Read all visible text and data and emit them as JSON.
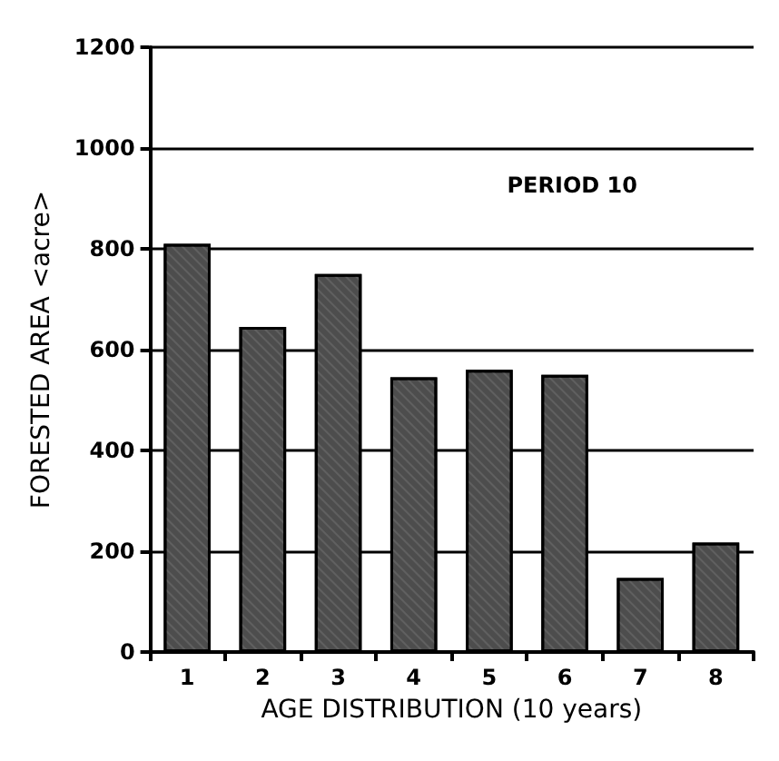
{
  "chart_data": {
    "type": "bar",
    "xlabel": "AGE DISTRIBUTION (10 years)",
    "ylabel": "FORESTED AREA <acre>",
    "categories": [
      "1",
      "2",
      "3",
      "4",
      "5",
      "6",
      "7",
      "8"
    ],
    "values": [
      810,
      645,
      750,
      545,
      560,
      550,
      147,
      217
    ],
    "color": "#4d4d4d",
    "ylim": [
      0,
      1200
    ],
    "yticks": [
      0,
      200,
      400,
      600,
      800,
      1000,
      1200
    ],
    "grid": "y",
    "annotations": [
      "PERIOD 10"
    ]
  }
}
